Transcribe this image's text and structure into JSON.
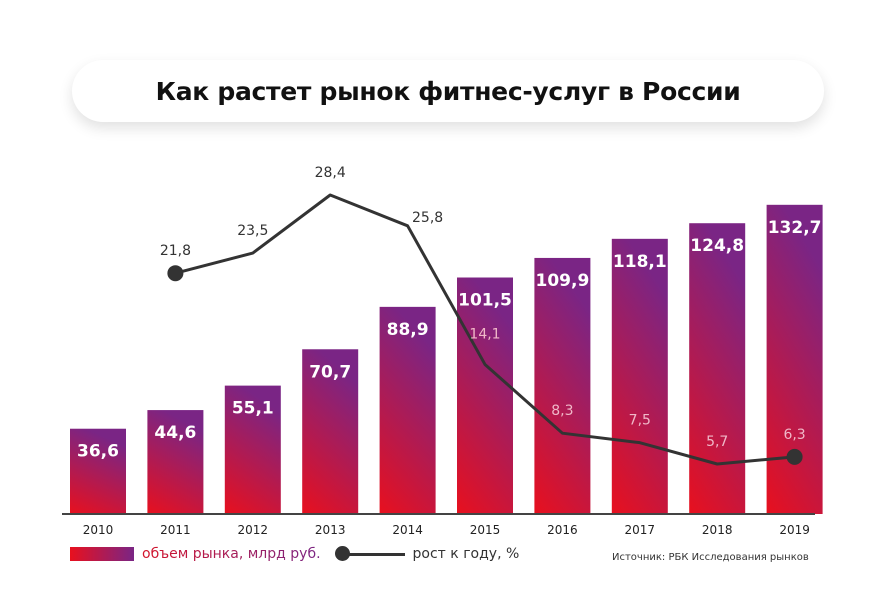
{
  "chart_data": {
    "type": "bar+line",
    "title": "Как растет рынок фитнес-услуг в России",
    "categories": [
      "2010",
      "2011",
      "2012",
      "2013",
      "2014",
      "2015",
      "2016",
      "2017",
      "2018",
      "2019"
    ],
    "series": [
      {
        "name": "объем рынка, млрд руб.",
        "type": "bar",
        "values": [
          36.6,
          44.6,
          55.1,
          70.7,
          88.9,
          101.5,
          109.9,
          118.1,
          124.8,
          132.7
        ],
        "labels": [
          "36,6",
          "44,6",
          "55,1",
          "70,7",
          "88,9",
          "101,5",
          "109,9",
          "118,1",
          "124,8",
          "132,7"
        ]
      },
      {
        "name": "рост к году, %",
        "type": "line",
        "values": [
          null,
          21.8,
          23.5,
          28.4,
          25.8,
          14.1,
          8.3,
          7.5,
          5.7,
          6.3
        ],
        "labels": [
          "",
          "21,8",
          "23,5",
          "28,4",
          "25,8",
          "14,1",
          "8,3",
          "7,5",
          "5,7",
          "6,3"
        ]
      }
    ],
    "source": "Источник: РБК Исследования рынков",
    "colors": {
      "bar_bottom": "#e8101e",
      "bar_top": "#7a2585",
      "line": "#333333"
    },
    "legend": "bottom"
  }
}
